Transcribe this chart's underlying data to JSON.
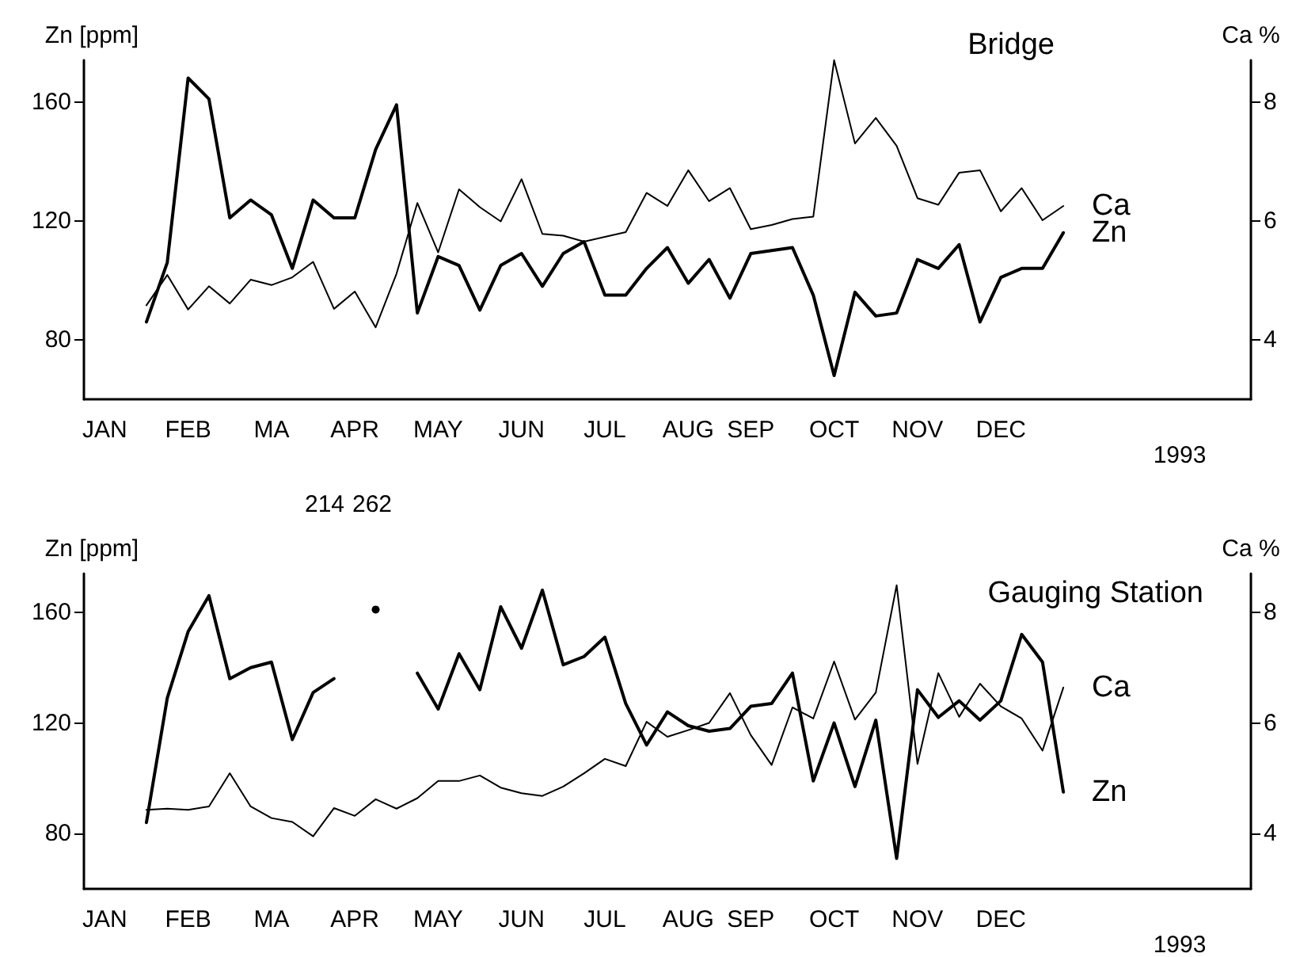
{
  "chart_data": [
    {
      "type": "line",
      "title": "Bridge",
      "ylabel": "Zn [ppm]",
      "y2label": "Ca %",
      "xlabel": "1993",
      "categories": [
        null,
        "JAN",
        null,
        null,
        null,
        "FEB",
        null,
        null,
        null,
        "MA",
        null,
        null,
        null,
        "APR",
        null,
        null,
        null,
        "MAY",
        null,
        null,
        null,
        "JUN",
        null,
        null,
        null,
        "JUL",
        null,
        null,
        null,
        "AUG",
        null,
        null,
        "SEP",
        null,
        null,
        null,
        "OCT",
        null,
        null,
        null,
        "NOV",
        null,
        null,
        null,
        "DEC",
        null,
        null,
        null,
        null,
        null,
        null,
        null,
        null,
        null,
        null,
        null,
        null
      ],
      "series": [
        {
          "name": "Zn",
          "color": "#000000",
          "values": [
            null,
            null,
            null,
            86,
            106,
            168,
            161,
            121,
            127,
            122,
            104,
            127,
            121,
            121,
            144,
            159,
            89,
            108,
            105,
            90,
            105,
            109,
            98,
            109,
            113,
            95,
            95,
            104,
            111,
            99,
            107,
            94,
            109,
            110,
            111,
            95,
            68,
            96,
            88,
            89,
            107,
            104,
            112,
            86,
            101,
            104,
            104,
            116,
            null,
            null,
            null,
            null,
            null,
            null,
            null,
            null,
            null
          ]
        },
        {
          "name": "Ca",
          "color": "#000000",
          "axis": "y2",
          "values": [
            null,
            null,
            null,
            4.58,
            5.09,
            4.51,
            4.9,
            4.61,
            5.01,
            4.92,
            5.05,
            5.31,
            4.52,
            4.81,
            4.21,
            5.11,
            6.3,
            5.47,
            6.53,
            6.23,
            5.99,
            6.7,
            5.78,
            5.75,
            5.65,
            5.73,
            5.81,
            6.47,
            6.25,
            6.85,
            6.33,
            6.55,
            5.86,
            5.93,
            6.03,
            6.07,
            8.7,
            7.3,
            7.73,
            7.26,
            6.38,
            6.27,
            6.81,
            6.85,
            6.16,
            6.55,
            6.01,
            6.25,
            null,
            null,
            null,
            null,
            null,
            null,
            null,
            null,
            null
          ]
        }
      ],
      "ylim": [
        60,
        174
      ],
      "yticks": [
        80,
        120,
        160
      ],
      "y2lim": [
        3,
        8.7
      ],
      "y2ticks": [
        4,
        6,
        8
      ],
      "grid": false,
      "legend": false,
      "marker": "none",
      "line_style": "solid"
    },
    {
      "type": "line",
      "title": "Gauging Station",
      "ylabel": "Zn [ppm]",
      "y2label": "Ca %",
      "xlabel": "1993",
      "categories": [
        null,
        "JAN",
        null,
        null,
        null,
        "FEB",
        null,
        null,
        null,
        "MA",
        null,
        null,
        null,
        "APR",
        null,
        null,
        null,
        "MAY",
        null,
        null,
        null,
        "JUN",
        null,
        null,
        null,
        "JUL",
        null,
        null,
        null,
        "AUG",
        null,
        null,
        "SEP",
        null,
        null,
        null,
        "OCT",
        null,
        null,
        null,
        "NOV",
        null,
        null,
        null,
        "DEC",
        null,
        null,
        null,
        null,
        null,
        null,
        null,
        null,
        null,
        null,
        null,
        null
      ],
      "series": [
        {
          "name": "Zn",
          "color": "#000000",
          "values": [
            null,
            null,
            null,
            84,
            129,
            153,
            166,
            136,
            140,
            142,
            114,
            131,
            136,
            null,
            161,
            null,
            138,
            125,
            145,
            132,
            162,
            147,
            168,
            141,
            144,
            151,
            127,
            112,
            124,
            119,
            117,
            118,
            126,
            127,
            138,
            99,
            120,
            97,
            121,
            71,
            132,
            122,
            128,
            121,
            128,
            152,
            142,
            95,
            null,
            null,
            null,
            null,
            null,
            null,
            null,
            null,
            null
          ]
        },
        {
          "name": "Ca",
          "color": "#000000",
          "axis": "y2",
          "values": [
            null,
            null,
            null,
            4.43,
            4.45,
            4.43,
            4.49,
            5.09,
            4.49,
            4.28,
            4.21,
            3.95,
            4.46,
            4.32,
            4.62,
            4.45,
            4.64,
            4.95,
            4.95,
            5.05,
            4.83,
            4.73,
            4.68,
            4.85,
            5.09,
            5.35,
            5.22,
            6.02,
            5.75,
            5.87,
            6.0,
            6.54,
            5.78,
            5.24,
            6.28,
            6.08,
            7.11,
            6.06,
            6.55,
            8.49,
            5.26,
            6.9,
            6.11,
            6.71,
            6.3,
            6.08,
            5.5,
            6.64,
            null,
            null,
            null,
            null,
            null,
            null,
            null,
            null,
            null
          ]
        }
      ],
      "ylim": [
        60,
        174
      ],
      "yticks": [
        80,
        120,
        160
      ],
      "y2lim": [
        3,
        8.7
      ],
      "y2ticks": [
        4,
        6,
        8
      ],
      "annotations": [
        "214",
        "262"
      ],
      "grid": false,
      "legend": false,
      "marker": "none",
      "line_style": "solid"
    }
  ]
}
